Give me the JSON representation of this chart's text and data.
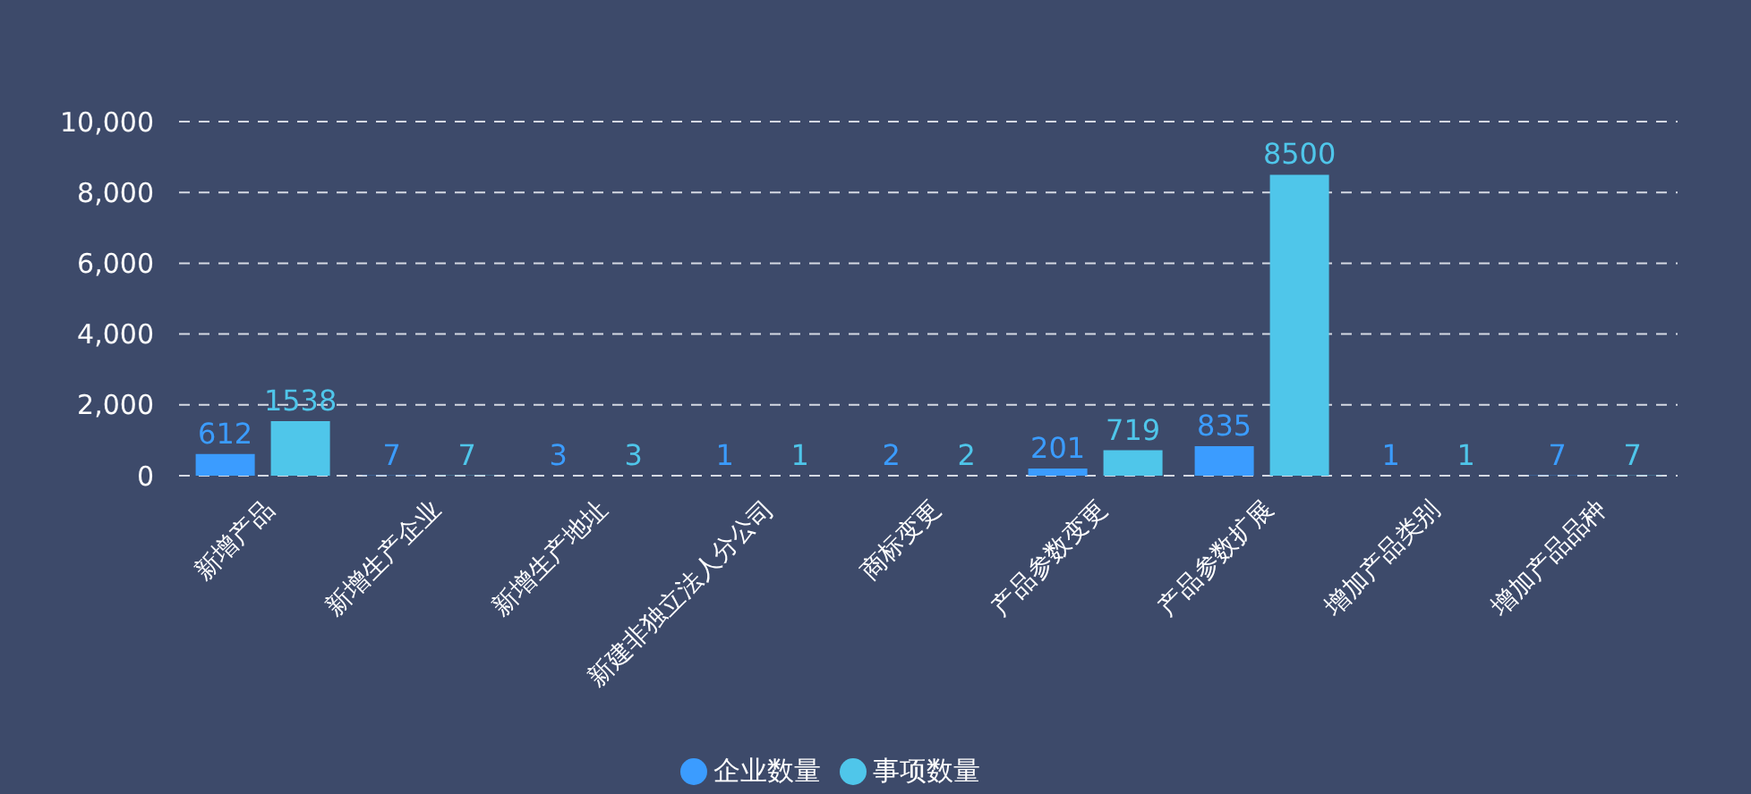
{
  "chart_data": {
    "type": "bar",
    "categories": [
      "新增产品",
      "新增生产企业",
      "新增生产地址",
      "新建非独立法人分公司",
      "商标变更",
      "产品参数变更",
      "产品参数扩展",
      "增加产品类别",
      "增加产品品种"
    ],
    "series": [
      {
        "name": "企业数量",
        "color": "#3b9cff",
        "values": [
          612,
          7,
          3,
          1,
          2,
          201,
          835,
          1,
          7
        ]
      },
      {
        "name": "事项数量",
        "color": "#4fc6ea",
        "values": [
          1538,
          7,
          3,
          1,
          2,
          719,
          8500,
          1,
          7
        ]
      }
    ],
    "ylim": [
      0,
      10000
    ],
    "yticks": [
      0,
      {
        "value": 2000,
        "label": "2,000"
      },
      {
        "value": 4000,
        "label": "4,000"
      },
      {
        "value": 6000,
        "label": "6,000"
      },
      {
        "value": 8000,
        "label": "8,000"
      },
      {
        "value": 10000,
        "label": "10,000"
      }
    ],
    "data_labels": true,
    "grid": "y",
    "legend": "bottom"
  }
}
